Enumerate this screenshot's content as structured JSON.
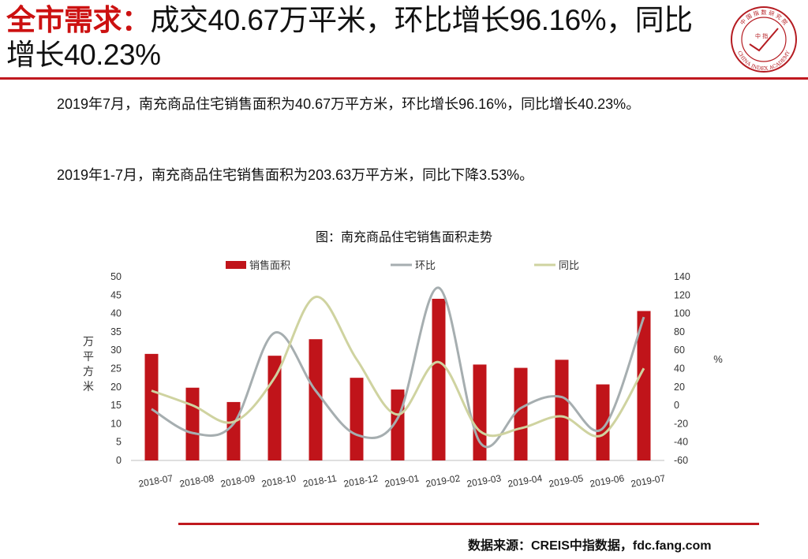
{
  "slide": {
    "title_accent": "全市需求：",
    "title_rest": "成交40.67万平米，环比增长96.16%，同比增长40.23%",
    "para1": "2019年7月，南充商品住宅销售面积为40.67万平方米，环比增长96.16%，同比增长40.23%。",
    "para2": "2019年1-7月，南充商品住宅销售面积为203.63万平方米，同比下降3.53%。",
    "chart_title": "图：南充商品住宅销售面积走势",
    "source": "数据来源：CREIS中指数据，fdc.fang.com",
    "logo_text_top": "中 国 指 数 研 究 院",
    "logo_text_bottom": "CHINA INDEX ACADEMY",
    "logo_center": "中 指"
  },
  "colors": {
    "accent_red": "#cc1111",
    "bar": "#c0141a",
    "mom_line": "#a6aeb0",
    "yoy_line": "#cfd3a0"
  },
  "chart_data": {
    "type": "bar",
    "categories": [
      "2018-07",
      "2018-08",
      "2018-09",
      "2018-10",
      "2018-11",
      "2018-12",
      "2019-01",
      "2019-02",
      "2019-03",
      "2019-04",
      "2019-05",
      "2019-06",
      "2019-07"
    ],
    "series": [
      {
        "name": "销售面积",
        "type": "bar",
        "axis": "left",
        "values": [
          29.0,
          19.8,
          15.9,
          28.5,
          33.0,
          22.5,
          19.3,
          44.0,
          26.1,
          25.2,
          27.4,
          20.7,
          40.67
        ]
      },
      {
        "name": "环比",
        "type": "line",
        "axis": "right",
        "values": [
          -4,
          -30,
          -20,
          79,
          16,
          -32,
          -14,
          128,
          -40,
          -3,
          9,
          -25,
          96.16
        ]
      },
      {
        "name": "同比",
        "type": "line",
        "axis": "right",
        "values": [
          16,
          0,
          -18,
          30,
          118,
          50,
          -10,
          47,
          -28,
          -25,
          -12,
          -32,
          40.23
        ]
      }
    ],
    "ylabel_left": "万平方米",
    "ylabel_right": "%",
    "ylim_left": [
      0,
      50
    ],
    "ylim_right": [
      -60,
      140
    ],
    "yticks_left": [
      "0",
      "5",
      "10",
      "15",
      "20",
      "25",
      "30",
      "35",
      "40",
      "45",
      "50"
    ],
    "yticks_right": [
      "-60",
      "-40",
      "-20",
      "0",
      "20",
      "40",
      "60",
      "80",
      "100",
      "120",
      "140"
    ],
    "grid": false,
    "legend_position": "top"
  }
}
